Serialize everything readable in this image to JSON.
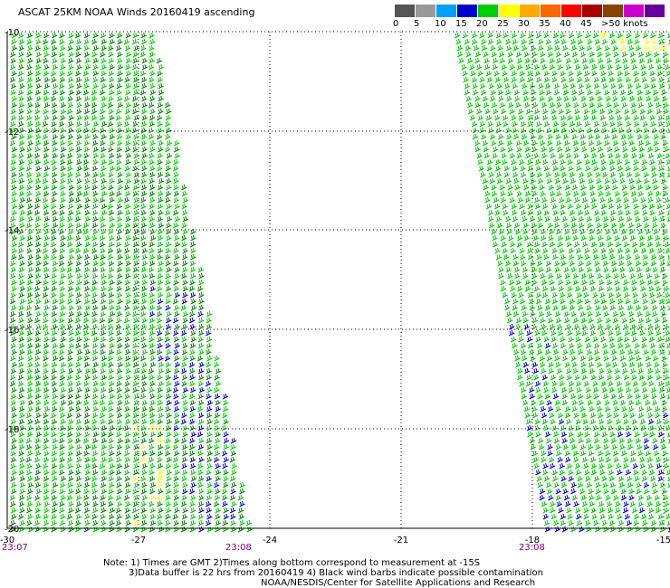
{
  "header": {
    "title": "ASCAT 25KM NOAA Winds 20160419 ascending"
  },
  "legend": {
    "colors": [
      "#555555",
      "#999999",
      "#00a0ff",
      "#0000cc",
      "#00cc00",
      "#ffff00",
      "#ffaa00",
      "#ff6600",
      "#ff0000",
      "#aa0000",
      "#884400",
      "#cc00cc",
      "#660099"
    ],
    "labels": [
      "0",
      "5",
      "10",
      "15",
      "20",
      "25",
      "30",
      "35",
      "40",
      "45",
      ">50 knots"
    ]
  },
  "map": {
    "lat_labels": [
      "-10",
      "-12",
      "-14",
      "-16",
      "-18",
      "-20"
    ],
    "lon_labels": [
      "-30",
      "-27",
      "-24",
      "-21",
      "-18",
      "-15"
    ],
    "time_labels": [
      "23:07",
      "23:08",
      "23:08"
    ]
  },
  "notes": {
    "line1": "Note: 1) Times are GMT 2)Times along bottom correspond to measurement at -15S",
    "line2": "3)Data buffer is 22 hrs from 20160419 4) Black wind barbs indicate possible contamination",
    "line3": "NOAA/NESDIS/Center for Satellite Applications and Research"
  }
}
